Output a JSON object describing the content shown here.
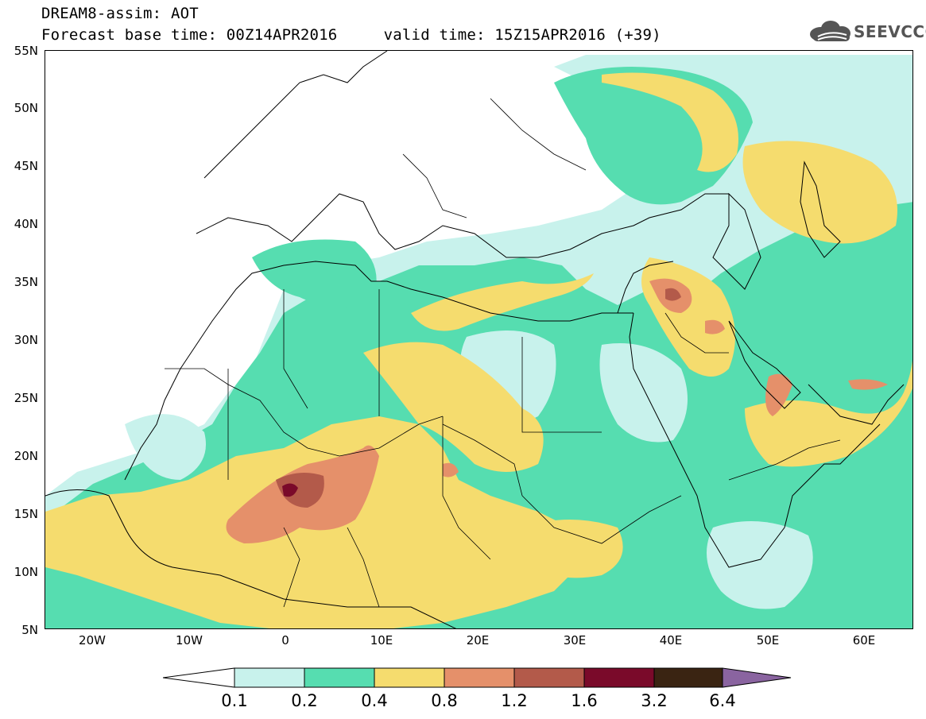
{
  "header": {
    "title_line1": "DREAM8-assim: AOT",
    "title_line2": "Forecast base time: 00Z14APR2016     valid time: 15Z15APR2016 (+39)",
    "logo_text": "SEEVCCC"
  },
  "map": {
    "lat_labels": [
      "55N",
      "50N",
      "45N",
      "40N",
      "35N",
      "30N",
      "25N",
      "20N",
      "15N",
      "10N",
      "5N"
    ],
    "lon_labels": [
      "20W",
      "10W",
      "0",
      "10E",
      "20E",
      "30E",
      "40E",
      "50E",
      "60E"
    ],
    "land_fill": "#ffffff",
    "coastline_color": "#000000"
  },
  "legend": {
    "labels": [
      "0.1",
      "0.2",
      "0.4",
      "0.8",
      "1.2",
      "1.6",
      "3.2",
      "6.4"
    ],
    "colors": [
      "#ffffff",
      "#c8f2ec",
      "#56ddb0",
      "#f5dc6e",
      "#e5906a",
      "#b35a4a",
      "#7a0a2a",
      "#3a2412",
      "#8a64a0"
    ]
  }
}
